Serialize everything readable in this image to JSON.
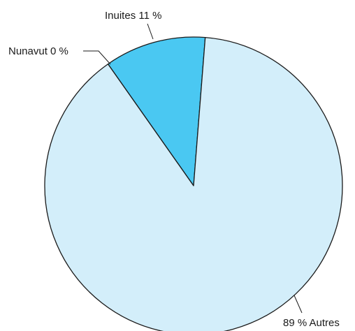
{
  "chart_data": {
    "type": "pie",
    "slices": [
      {
        "value": 11,
        "pct": "11 %",
        "category": "Inuites",
        "label": "Inuites 11 %",
        "color": "#4ac8f2"
      },
      {
        "value": 0,
        "pct": "0 %",
        "category": "Nunavut",
        "label": "Nunavut 0 %",
        "color": "#4ac8f2"
      },
      {
        "value": 89,
        "pct": "89 %",
        "category": "Autres",
        "label": "89 % Autres",
        "color": "#d3eefa"
      }
    ]
  }
}
